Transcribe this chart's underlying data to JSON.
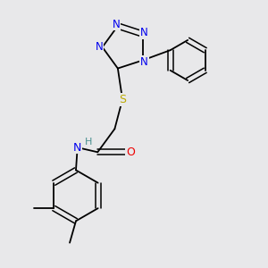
{
  "bg_color": "#e8e8ea",
  "atom_colors": {
    "C": "#000000",
    "N": "#0000ee",
    "O": "#ee0000",
    "S": "#bbaa00",
    "H": "#4a9090"
  },
  "bond_color": "#000000"
}
